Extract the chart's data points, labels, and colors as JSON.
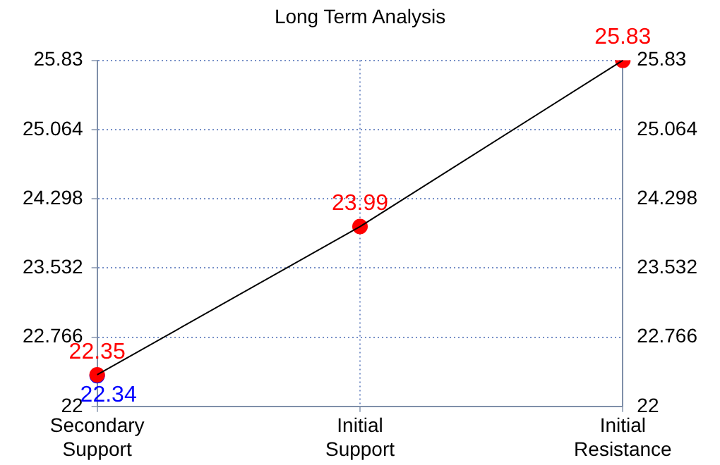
{
  "chart_data": {
    "type": "line",
    "title": "Long Term Analysis",
    "categories": [
      "Secondary Support",
      "Initial Support",
      "Initial Resistance"
    ],
    "series": [
      {
        "type": "line",
        "color": "#000000",
        "values": [
          22.35,
          23.99,
          25.83
        ],
        "marker": "none"
      },
      {
        "type": "scatter",
        "color": "#ff0000",
        "values": [
          22.35,
          23.99,
          25.83
        ],
        "marker": "circle",
        "value_labels": [
          "22.35",
          "23.99",
          "25.83"
        ]
      },
      {
        "type": "scatter",
        "color": "#0000ff",
        "values": [
          22.34,
          null,
          null
        ],
        "marker": "circle",
        "value_labels": [
          "22.34",
          null,
          null
        ]
      }
    ],
    "ylim": [
      22,
      25.83
    ],
    "yticks": [
      22,
      22.766,
      23.532,
      24.298,
      25.064,
      25.83
    ],
    "y2lim": [
      22,
      25.83
    ],
    "y2ticks": [
      22,
      22.766,
      23.532,
      24.298,
      25.064,
      25.83
    ],
    "grid": true,
    "legend": false
  }
}
